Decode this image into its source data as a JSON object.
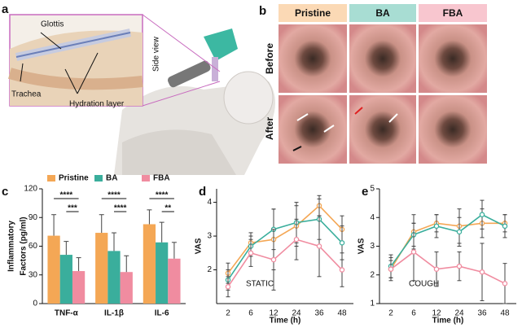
{
  "figure": {
    "panels": [
      "a",
      "b",
      "c",
      "d",
      "e"
    ],
    "a": {
      "labels": [
        "Glottis",
        "Trachea",
        "Hydration layer",
        "Side view"
      ]
    },
    "b": {
      "columns": [
        "Pristine",
        "BA",
        "FBA"
      ],
      "rows": [
        "Before",
        "After"
      ]
    }
  },
  "chart_data": [
    {
      "type": "bar",
      "ylabel": [
        "Inflammatory",
        "Factors (pg/ml)"
      ],
      "categories": [
        "TNF-α",
        "IL-1β",
        "IL-6"
      ],
      "series": [
        {
          "name": "Pristine",
          "color": "#f4a755",
          "values": [
            71,
            74,
            83
          ],
          "errors": [
            22,
            19,
            15
          ]
        },
        {
          "name": "BA",
          "color": "#3aae9c",
          "values": [
            51,
            55,
            64
          ],
          "errors": [
            14,
            19,
            21
          ]
        },
        {
          "name": "FBA",
          "color": "#f08ca0",
          "values": [
            34,
            33,
            47
          ],
          "errors": [
            14,
            17,
            17
          ]
        }
      ],
      "significance": [
        "****",
        "***",
        "****",
        "****",
        "****",
        "**"
      ],
      "ylim": [
        0,
        120
      ],
      "yticks": [
        0,
        30,
        60,
        90,
        120
      ]
    },
    {
      "type": "line",
      "ylabel": "VAS",
      "xlabel": "Time (h)",
      "annotation": "STATIC",
      "categories": [
        "2",
        "6",
        "12",
        "24",
        "36",
        "48"
      ],
      "series": [
        {
          "color": "#f4a755",
          "values": [
            1.9,
            2.8,
            2.9,
            3.3,
            3.9,
            3.2
          ],
          "errors": [
            0.3,
            0.3,
            0.9,
            0.6,
            0.3,
            0.4
          ]
        },
        {
          "color": "#3aae9c",
          "values": [
            1.7,
            2.7,
            3.2,
            3.4,
            3.5,
            2.8
          ],
          "errors": [
            0.3,
            0.3,
            0.6,
            0.6,
            0.6,
            0.5
          ]
        },
        {
          "color": "#f08ca0",
          "values": [
            1.5,
            2.5,
            2.3,
            2.9,
            2.7,
            2.0
          ],
          "errors": [
            0.3,
            0.4,
            0.9,
            0.6,
            0.9,
            0.5
          ]
        }
      ],
      "ylim": [
        1,
        4.4
      ],
      "yticks": [
        2,
        3,
        4
      ]
    },
    {
      "type": "line",
      "ylabel": "VAS",
      "xlabel": "Time (h)",
      "annotation": "COUGH",
      "categories": [
        "2",
        "6",
        "12",
        "24",
        "36",
        "48"
      ],
      "series": [
        {
          "color": "#f4a755",
          "values": [
            2.2,
            3.5,
            3.8,
            3.7,
            3.8,
            3.8
          ],
          "errors": [
            0.4,
            0.6,
            0.3,
            0.6,
            0.5,
            0.3
          ]
        },
        {
          "color": "#3aae9c",
          "values": [
            2.3,
            3.4,
            3.7,
            3.5,
            4.1,
            3.7
          ],
          "errors": [
            0.4,
            0.4,
            0.4,
            0.5,
            0.5,
            0.4
          ]
        },
        {
          "color": "#f08ca0",
          "values": [
            2.2,
            2.8,
            2.2,
            2.3,
            2.1,
            1.7
          ],
          "errors": [
            0.3,
            1.0,
            0.6,
            0.5,
            1.0,
            0.7
          ]
        }
      ],
      "ylim": [
        1,
        5
      ],
      "yticks": [
        1,
        2,
        3,
        4,
        5
      ]
    }
  ]
}
